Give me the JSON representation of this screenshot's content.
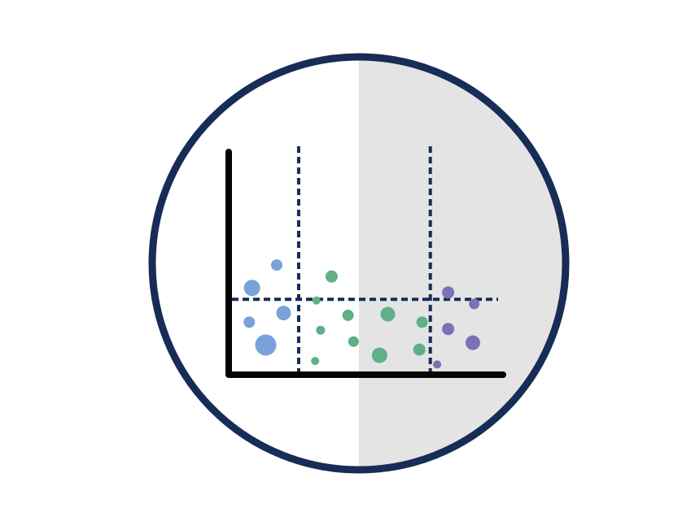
{
  "colors": {
    "ring": "#172c57",
    "shade": "#e4e4e4",
    "axes": "#050505",
    "dash": "#172c57",
    "blue": "#7aa1d9",
    "green": "#5fb087",
    "purple": "#7c71b5",
    "background": "#ffffff"
  },
  "chart_data": {
    "type": "scatter",
    "title": "",
    "xlabel": "",
    "ylabel": "",
    "xlim": [
      0,
      100
    ],
    "ylim": [
      0,
      100
    ],
    "grid": false,
    "vertical_dashed_lines_x": [
      25.5,
      73.5
    ],
    "horizontal_dashed_line_y": 33,
    "shaded_region_x_from": 47.5,
    "series": [
      {
        "group": "blue",
        "points": [
          {
            "x": 8.5,
            "y": 38,
            "r": 10
          },
          {
            "x": 17.5,
            "y": 48,
            "r": 7
          },
          {
            "x": 7.5,
            "y": 23,
            "r": 7
          },
          {
            "x": 20,
            "y": 27,
            "r": 9
          },
          {
            "x": 13.5,
            "y": 13,
            "r": 13
          }
        ]
      },
      {
        "group": "green",
        "points": [
          {
            "x": 37.5,
            "y": 43,
            "r": 7.5
          },
          {
            "x": 32,
            "y": 32.5,
            "r": 5
          },
          {
            "x": 43.5,
            "y": 26,
            "r": 7
          },
          {
            "x": 33.5,
            "y": 19.5,
            "r": 5.5
          },
          {
            "x": 45.5,
            "y": 14.5,
            "r": 6.5
          },
          {
            "x": 31.5,
            "y": 6,
            "r": 5
          },
          {
            "x": 58,
            "y": 26.5,
            "r": 9
          },
          {
            "x": 70.5,
            "y": 23,
            "r": 7
          },
          {
            "x": 55,
            "y": 8.5,
            "r": 9.5
          },
          {
            "x": 69.5,
            "y": 11,
            "r": 7.5
          }
        ]
      },
      {
        "group": "purple",
        "points": [
          {
            "x": 80,
            "y": 36,
            "r": 7.5
          },
          {
            "x": 89.5,
            "y": 31,
            "r": 6.5
          },
          {
            "x": 80,
            "y": 20,
            "r": 7.5
          },
          {
            "x": 89,
            "y": 14,
            "r": 9
          },
          {
            "x": 76,
            "y": 4.5,
            "r": 5
          }
        ]
      }
    ]
  }
}
